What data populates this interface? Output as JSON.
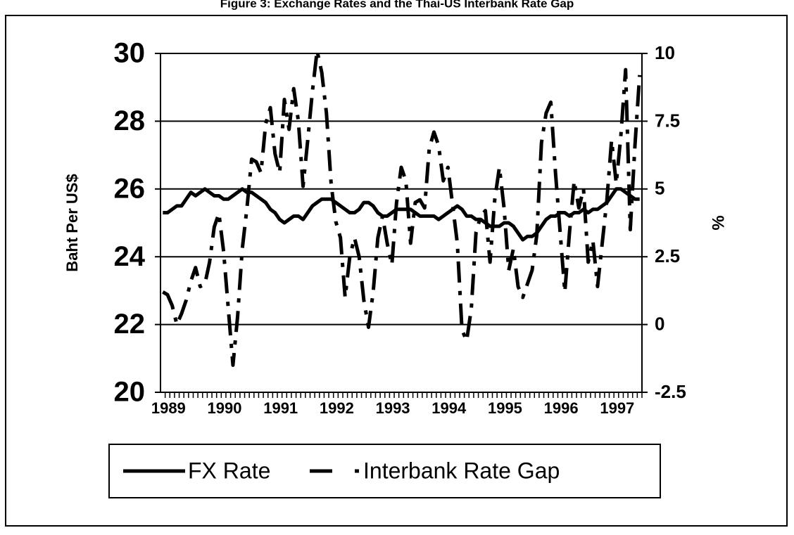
{
  "chart_data": {
    "type": "line",
    "title": "Figure 3: Exchange Rates and the Thai-US Interbank Rate Gap",
    "y_label": "Baht Per US$",
    "y2_label": "%",
    "categories": [
      "1989",
      null,
      null,
      null,
      null,
      null,
      null,
      null,
      null,
      null,
      null,
      null,
      "1990",
      null,
      null,
      null,
      null,
      null,
      null,
      null,
      null,
      null,
      null,
      null,
      "1991",
      null,
      null,
      null,
      null,
      null,
      null,
      null,
      null,
      null,
      null,
      null,
      "1992",
      null,
      null,
      null,
      null,
      null,
      null,
      null,
      null,
      null,
      null,
      null,
      "1993",
      null,
      null,
      null,
      null,
      null,
      null,
      null,
      null,
      null,
      null,
      null,
      "1994",
      null,
      null,
      null,
      null,
      null,
      null,
      null,
      null,
      null,
      null,
      null,
      "1995",
      null,
      null,
      null,
      null,
      null,
      null,
      null,
      null,
      null,
      null,
      null,
      "1996",
      null,
      null,
      null,
      null,
      null,
      null,
      null,
      null,
      null,
      null,
      null,
      "1997",
      null,
      null,
      null,
      null,
      null,
      null
    ],
    "series": [
      {
        "name": "FX Rate",
        "color": "#000000",
        "values": [
          25.3,
          25.3,
          25.4,
          25.5,
          25.5,
          25.7,
          25.9,
          25.8,
          25.9,
          26.0,
          25.9,
          25.8,
          25.8,
          25.7,
          25.7,
          25.8,
          25.9,
          26.0,
          25.9,
          25.9,
          25.8,
          25.7,
          25.6,
          25.4,
          25.3,
          25.1,
          25.0,
          25.1,
          25.2,
          25.2,
          25.1,
          25.3,
          25.5,
          25.6,
          25.7,
          25.7,
          25.7,
          25.6,
          25.5,
          25.4,
          25.3,
          25.3,
          25.4,
          25.6,
          25.6,
          25.5,
          25.3,
          25.2,
          25.2,
          25.3,
          25.4,
          25.4,
          25.4,
          25.4,
          25.3,
          25.2,
          25.2,
          25.2,
          25.2,
          25.1,
          25.2,
          25.3,
          25.4,
          25.5,
          25.4,
          25.2,
          25.2,
          25.1,
          25.1,
          25.0,
          24.9,
          24.9,
          24.9,
          25.0,
          25.0,
          24.9,
          24.7,
          24.5,
          24.6,
          24.6,
          24.7,
          24.9,
          25.1,
          25.2,
          25.2,
          25.3,
          25.3,
          25.2,
          25.3,
          25.3,
          25.4,
          25.3,
          25.4,
          25.4,
          25.5,
          25.6,
          25.8,
          26.0,
          26.0,
          25.9,
          25.8,
          25.7,
          25.7
        ]
      },
      {
        "name": "Interbank Rate Gap",
        "color": "#000000",
        "axis": "y2",
        "values": [
          1.2,
          1.1,
          0.7,
          0.0,
          0.4,
          0.9,
          1.6,
          2.1,
          1.4,
          1.5,
          2.3,
          3.6,
          4.1,
          2.7,
          0.6,
          -1.5,
          0.3,
          2.8,
          4.3,
          6.1,
          6.0,
          5.6,
          7.4,
          8.0,
          6.3,
          5.6,
          8.3,
          7.2,
          8.7,
          7.5,
          5.1,
          6.8,
          8.6,
          10.1,
          9.3,
          7.8,
          5.2,
          3.8,
          3.2,
          1.0,
          2.5,
          3.2,
          2.5,
          0.9,
          -0.1,
          1.2,
          3.2,
          4.0,
          3.0,
          2.2,
          4.5,
          5.8,
          5.3,
          3.0,
          4.5,
          4.6,
          4.3,
          6.5,
          7.1,
          6.6,
          5.3,
          5.8,
          4.4,
          3.0,
          -0.2,
          -0.6,
          0.6,
          3.4,
          4.0,
          4.2,
          2.3,
          4.6,
          5.8,
          4.3,
          2.0,
          2.8,
          1.4,
          1.0,
          1.5,
          2.0,
          3.3,
          6.7,
          7.8,
          8.2,
          5.6,
          3.4,
          1.2,
          3.4,
          5.3,
          4.3,
          5.0,
          2.3,
          3.1,
          1.4,
          3.0,
          4.6,
          6.8,
          5.2,
          7.0,
          9.4,
          3.5,
          6.6,
          9.2
        ]
      }
    ],
    "ylim": [
      20,
      30
    ],
    "yticks": [
      20,
      22,
      24,
      26,
      28,
      30
    ],
    "y2lim": [
      -2.5,
      10
    ],
    "y2ticks": [
      -2.5,
      0,
      2.5,
      5,
      7.5,
      10
    ],
    "grid": true,
    "legend": "bottom"
  }
}
